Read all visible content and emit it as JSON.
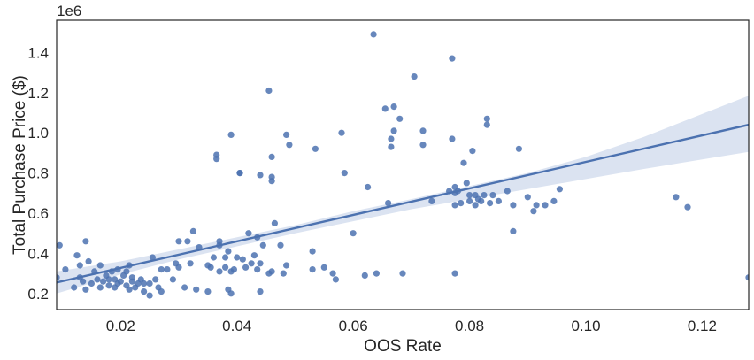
{
  "chart_data": {
    "type": "scatter",
    "title": "",
    "xlabel": "OOS Rate",
    "ylabel": "Total Purchase Price ($)",
    "y_offset_label": "1e6",
    "xlim": [
      0.009,
      0.128
    ],
    "ylim": [
      0.12,
      1.56
    ],
    "x_ticks": [
      0.02,
      0.04,
      0.06,
      0.08,
      0.1,
      0.12
    ],
    "x_tick_labels": [
      "0.02",
      "0.04",
      "0.06",
      "0.08",
      "0.10",
      "0.12"
    ],
    "y_ticks": [
      0.2,
      0.4,
      0.6,
      0.8,
      1.0,
      1.2,
      1.4
    ],
    "y_tick_labels": [
      "0.2",
      "0.4",
      "0.6",
      "0.8",
      "1.0",
      "1.2",
      "1.4"
    ],
    "grid": false,
    "colors": {
      "points": "#4c72b0",
      "regression_line": "#4c72b0",
      "confidence_band": "#dbe3f1",
      "frame": "#262626"
    },
    "regression": {
      "x": [
        0.009,
        0.128
      ],
      "y": [
        0.255,
        1.04
      ],
      "ci_x": [
        0.009,
        0.02,
        0.03,
        0.04,
        0.05,
        0.06,
        0.07,
        0.08,
        0.09,
        0.1,
        0.11,
        0.128
      ],
      "ci_lower": [
        0.2,
        0.295,
        0.37,
        0.435,
        0.5,
        0.56,
        0.62,
        0.67,
        0.72,
        0.77,
        0.82,
        0.905
      ],
      "ci_upper": [
        0.31,
        0.36,
        0.42,
        0.48,
        0.54,
        0.61,
        0.67,
        0.735,
        0.8,
        0.88,
        0.98,
        1.185
      ]
    },
    "points": [
      [
        0.0095,
        0.44
      ],
      [
        0.009,
        0.28
      ],
      [
        0.0105,
        0.32
      ],
      [
        0.012,
        0.23
      ],
      [
        0.0125,
        0.39
      ],
      [
        0.013,
        0.28
      ],
      [
        0.013,
        0.34
      ],
      [
        0.0135,
        0.26
      ],
      [
        0.014,
        0.22
      ],
      [
        0.014,
        0.46
      ],
      [
        0.0145,
        0.36
      ],
      [
        0.015,
        0.25
      ],
      [
        0.0155,
        0.31
      ],
      [
        0.016,
        0.27
      ],
      [
        0.0165,
        0.23
      ],
      [
        0.0165,
        0.34
      ],
      [
        0.017,
        0.26
      ],
      [
        0.0175,
        0.29
      ],
      [
        0.018,
        0.24
      ],
      [
        0.018,
        0.27
      ],
      [
        0.0185,
        0.31
      ],
      [
        0.019,
        0.23
      ],
      [
        0.019,
        0.27
      ],
      [
        0.0195,
        0.25
      ],
      [
        0.0195,
        0.32
      ],
      [
        0.02,
        0.26
      ],
      [
        0.0205,
        0.29
      ],
      [
        0.021,
        0.24
      ],
      [
        0.021,
        0.31
      ],
      [
        0.0215,
        0.22
      ],
      [
        0.0215,
        0.34
      ],
      [
        0.022,
        0.26
      ],
      [
        0.022,
        0.28
      ],
      [
        0.0225,
        0.23
      ],
      [
        0.023,
        0.25
      ],
      [
        0.0235,
        0.27
      ],
      [
        0.024,
        0.21
      ],
      [
        0.024,
        0.25
      ],
      [
        0.025,
        0.19
      ],
      [
        0.025,
        0.25
      ],
      [
        0.0255,
        0.38
      ],
      [
        0.026,
        0.27
      ],
      [
        0.0265,
        0.23
      ],
      [
        0.027,
        0.21
      ],
      [
        0.027,
        0.32
      ],
      [
        0.028,
        0.32
      ],
      [
        0.029,
        0.27
      ],
      [
        0.0295,
        0.35
      ],
      [
        0.03,
        0.33
      ],
      [
        0.03,
        0.46
      ],
      [
        0.031,
        0.23
      ],
      [
        0.0315,
        0.46
      ],
      [
        0.032,
        0.35
      ],
      [
        0.0325,
        0.51
      ],
      [
        0.033,
        0.22
      ],
      [
        0.0335,
        0.43
      ],
      [
        0.035,
        0.21
      ],
      [
        0.035,
        0.34
      ],
      [
        0.0355,
        0.33
      ],
      [
        0.036,
        0.38
      ],
      [
        0.0365,
        0.89
      ],
      [
        0.0365,
        0.87
      ],
      [
        0.037,
        0.44
      ],
      [
        0.037,
        0.31
      ],
      [
        0.037,
        0.46
      ],
      [
        0.038,
        0.38
      ],
      [
        0.038,
        0.33
      ],
      [
        0.0385,
        0.22
      ],
      [
        0.0385,
        0.41
      ],
      [
        0.039,
        0.2
      ],
      [
        0.039,
        0.31
      ],
      [
        0.0395,
        0.32
      ],
      [
        0.039,
        0.99
      ],
      [
        0.04,
        0.38
      ],
      [
        0.0405,
        0.8
      ],
      [
        0.0405,
        0.8
      ],
      [
        0.041,
        0.37
      ],
      [
        0.0415,
        0.33
      ],
      [
        0.042,
        0.5
      ],
      [
        0.0425,
        0.35
      ],
      [
        0.043,
        0.39
      ],
      [
        0.0435,
        0.48
      ],
      [
        0.0435,
        0.32
      ],
      [
        0.044,
        0.21
      ],
      [
        0.044,
        0.35
      ],
      [
        0.044,
        0.79
      ],
      [
        0.0445,
        0.44
      ],
      [
        0.0455,
        1.21
      ],
      [
        0.0455,
        0.3
      ],
      [
        0.046,
        0.88
      ],
      [
        0.046,
        0.78
      ],
      [
        0.046,
        0.76
      ],
      [
        0.046,
        0.31
      ],
      [
        0.0465,
        0.55
      ],
      [
        0.0475,
        0.44
      ],
      [
        0.048,
        0.3
      ],
      [
        0.0485,
        0.99
      ],
      [
        0.0485,
        0.34
      ],
      [
        0.049,
        0.94
      ],
      [
        0.053,
        0.32
      ],
      [
        0.053,
        0.41
      ],
      [
        0.0535,
        0.92
      ],
      [
        0.055,
        0.33
      ],
      [
        0.0565,
        0.3
      ],
      [
        0.057,
        0.27
      ],
      [
        0.058,
        1.0
      ],
      [
        0.0585,
        0.8
      ],
      [
        0.06,
        0.5
      ],
      [
        0.062,
        0.29
      ],
      [
        0.0625,
        0.73
      ],
      [
        0.0635,
        1.49
      ],
      [
        0.064,
        0.3
      ],
      [
        0.0655,
        1.12
      ],
      [
        0.066,
        0.65
      ],
      [
        0.0665,
        0.97
      ],
      [
        0.0665,
        0.93
      ],
      [
        0.067,
        1.13
      ],
      [
        0.067,
        1.01
      ],
      [
        0.068,
        1.07
      ],
      [
        0.0685,
        0.3
      ],
      [
        0.0705,
        1.28
      ],
      [
        0.072,
        0.94
      ],
      [
        0.072,
        1.01
      ],
      [
        0.0735,
        0.66
      ],
      [
        0.0765,
        0.71
      ],
      [
        0.077,
        0.97
      ],
      [
        0.077,
        1.37
      ],
      [
        0.0775,
        0.3
      ],
      [
        0.0775,
        0.64
      ],
      [
        0.0775,
        0.7
      ],
      [
        0.0775,
        0.73
      ],
      [
        0.078,
        0.71
      ],
      [
        0.0785,
        0.65
      ],
      [
        0.079,
        0.85
      ],
      [
        0.0795,
        0.75
      ],
      [
        0.08,
        0.66
      ],
      [
        0.08,
        0.69
      ],
      [
        0.0805,
        0.91
      ],
      [
        0.081,
        0.69
      ],
      [
        0.081,
        0.64
      ],
      [
        0.0815,
        0.67
      ],
      [
        0.082,
        0.66
      ],
      [
        0.0825,
        0.69
      ],
      [
        0.083,
        1.07
      ],
      [
        0.083,
        1.04
      ],
      [
        0.0835,
        0.65
      ],
      [
        0.084,
        0.69
      ],
      [
        0.085,
        0.66
      ],
      [
        0.0865,
        0.71
      ],
      [
        0.0875,
        0.64
      ],
      [
        0.0875,
        0.51
      ],
      [
        0.0885,
        0.92
      ],
      [
        0.09,
        0.68
      ],
      [
        0.091,
        0.61
      ],
      [
        0.0915,
        0.64
      ],
      [
        0.093,
        0.64
      ],
      [
        0.0945,
        0.66
      ],
      [
        0.0955,
        0.72
      ],
      [
        0.1155,
        0.68
      ],
      [
        0.1175,
        0.63
      ],
      [
        0.128,
        0.28
      ]
    ]
  }
}
